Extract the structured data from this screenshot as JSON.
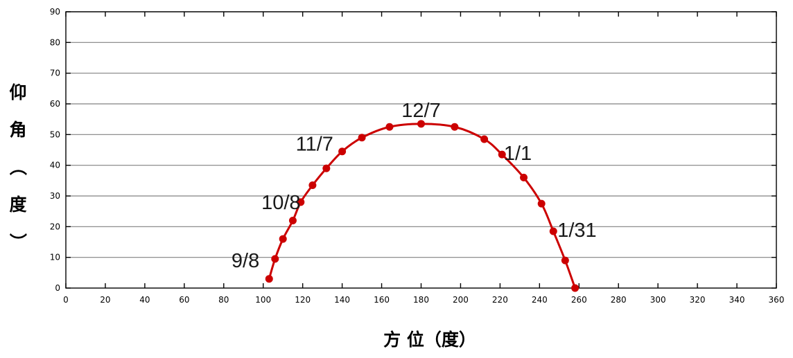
{
  "chart_data": {
    "type": "line",
    "xlabel": "方 位（度）",
    "ylabel": "仰角（度）",
    "xlim": [
      0,
      360
    ],
    "ylim": [
      0,
      90
    ],
    "x_ticks": [
      0,
      20,
      40,
      60,
      80,
      100,
      120,
      140,
      160,
      180,
      200,
      220,
      240,
      260,
      280,
      300,
      320,
      340,
      360
    ],
    "y_ticks": [
      0,
      10,
      20,
      30,
      40,
      50,
      60,
      70,
      80,
      90
    ],
    "grid": {
      "horizontal": true,
      "vertical": false
    },
    "line_color": "#cc0000",
    "marker_color": "#cc0000",
    "points": [
      {
        "x": 103,
        "y": 3
      },
      {
        "x": 106,
        "y": 9.5
      },
      {
        "x": 110,
        "y": 16
      },
      {
        "x": 115,
        "y": 22
      },
      {
        "x": 119,
        "y": 28
      },
      {
        "x": 125,
        "y": 33.5
      },
      {
        "x": 132,
        "y": 39
      },
      {
        "x": 140,
        "y": 44.5
      },
      {
        "x": 150,
        "y": 49
      },
      {
        "x": 164,
        "y": 52.5
      },
      {
        "x": 180,
        "y": 53.5
      },
      {
        "x": 197,
        "y": 52.5
      },
      {
        "x": 212,
        "y": 48.5
      },
      {
        "x": 221,
        "y": 43.5
      },
      {
        "x": 232,
        "y": 36
      },
      {
        "x": 241,
        "y": 27.5
      },
      {
        "x": 247,
        "y": 18.5
      },
      {
        "x": 253,
        "y": 9
      },
      {
        "x": 258,
        "y": 0
      }
    ],
    "annotations": [
      {
        "text": "9/8",
        "x": 91,
        "y": 9
      },
      {
        "text": "10/8",
        "x": 109,
        "y": 28
      },
      {
        "text": "11/7",
        "x": 126,
        "y": 47
      },
      {
        "text": "12/7",
        "x": 180,
        "y": 58
      },
      {
        "text": "1/1",
        "x": 229,
        "y": 44
      },
      {
        "text": "1/31",
        "x": 259,
        "y": 19
      }
    ]
  }
}
